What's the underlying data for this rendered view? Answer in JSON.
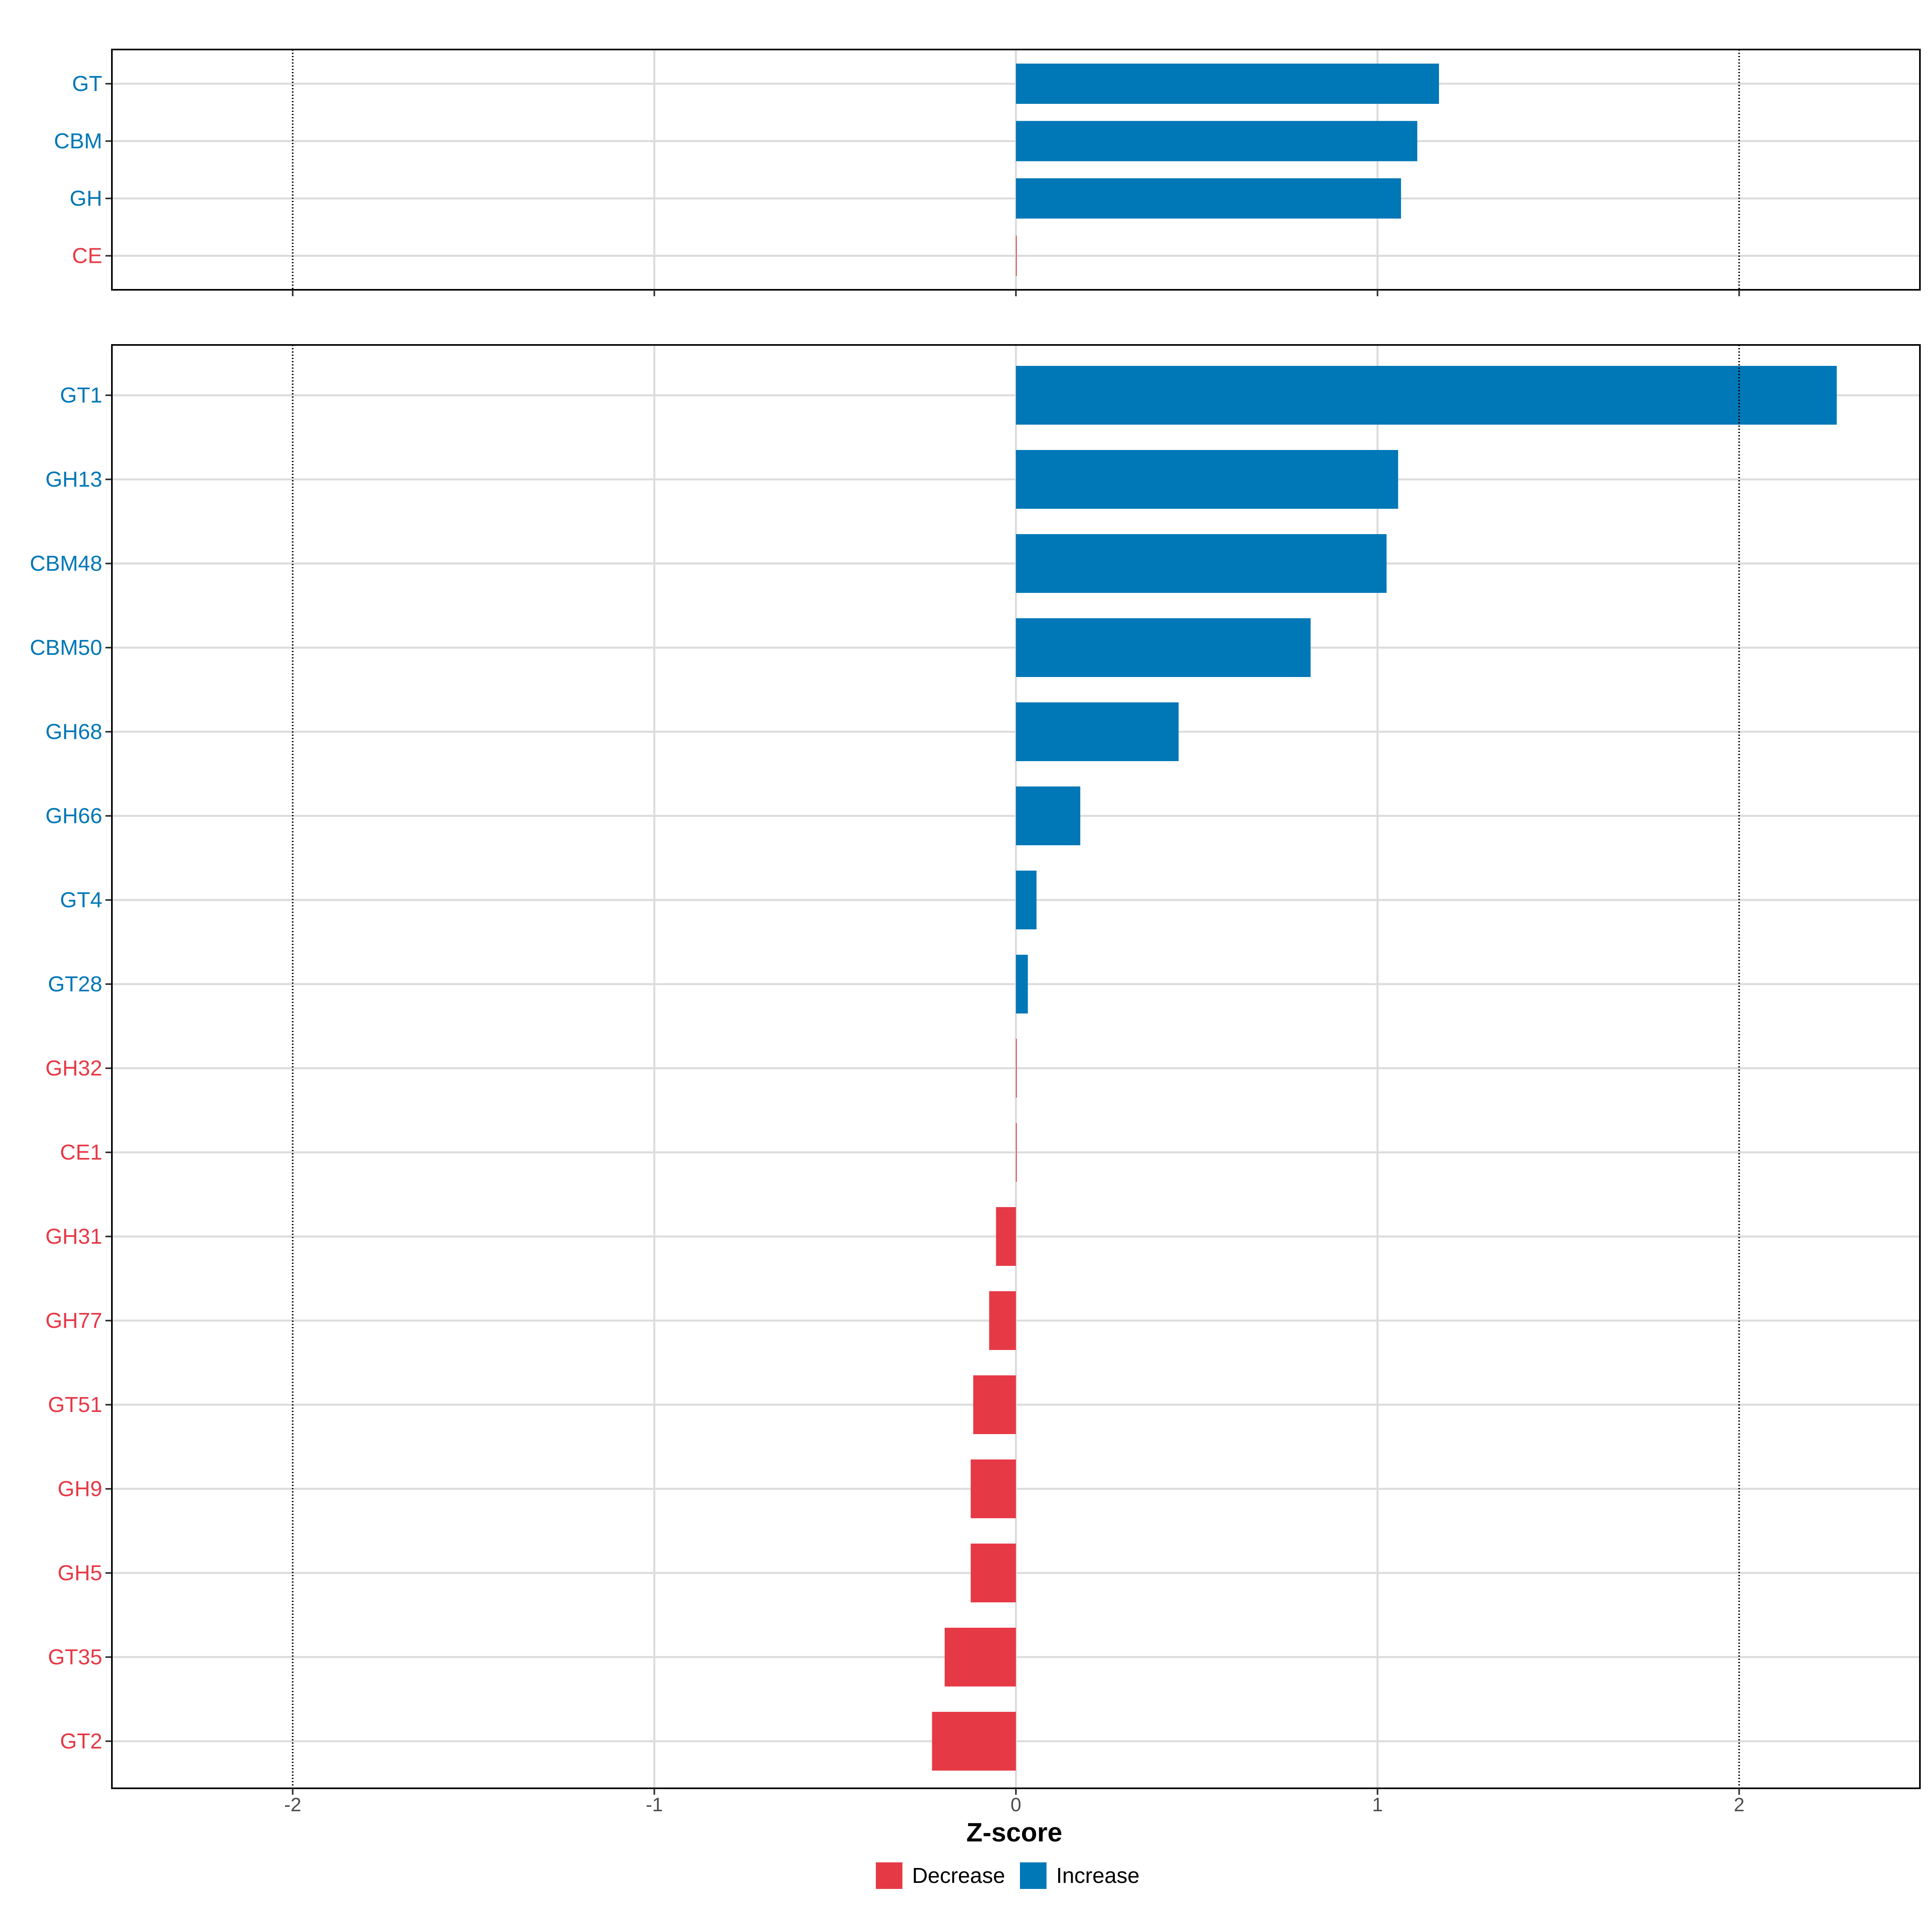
{
  "chart_data": [
    {
      "type": "bar",
      "orientation": "horizontal",
      "panel": "top",
      "categories": [
        "GT",
        "CBM",
        "GH",
        "CE"
      ],
      "values": [
        1.17,
        1.11,
        1.065,
        0.0
      ],
      "direction": [
        "Increase",
        "Increase",
        "Increase",
        "Decrease"
      ],
      "xlim": [
        -2.5,
        2.5
      ],
      "reference_lines": [
        -2,
        2
      ]
    },
    {
      "type": "bar",
      "orientation": "horizontal",
      "panel": "bottom",
      "categories": [
        "GT1",
        "GH13",
        "CBM48",
        "CBM50",
        "GH68",
        "GH66",
        "GT4",
        "GT28",
        "GH32",
        "CE1",
        "GH31",
        "GH77",
        "GT51",
        "GH9",
        "GH5",
        "GT35",
        "GT2"
      ],
      "values": [
        2.27,
        1.057,
        1.025,
        0.815,
        0.45,
        0.178,
        0.057,
        0.033,
        0.0,
        0.0,
        -0.055,
        -0.074,
        -0.118,
        -0.125,
        -0.125,
        -0.197,
        -0.232
      ],
      "direction": [
        "Increase",
        "Increase",
        "Increase",
        "Increase",
        "Increase",
        "Increase",
        "Increase",
        "Increase",
        "Decrease",
        "Decrease",
        "Decrease",
        "Decrease",
        "Decrease",
        "Decrease",
        "Decrease",
        "Decrease",
        "Decrease"
      ],
      "xlim": [
        -2.5,
        2.5
      ],
      "reference_lines": [
        -2,
        2
      ]
    }
  ],
  "x_axis": {
    "title": "Z-score",
    "ticks": [
      -2,
      -1,
      0,
      1,
      2
    ],
    "tick_labels": [
      "-2",
      "-1",
      "0",
      "1",
      "2"
    ]
  },
  "legend": {
    "position": "bottom",
    "items": [
      {
        "label": "Decrease",
        "color": "#E63946"
      },
      {
        "label": "Increase",
        "color": "#0077B6"
      }
    ]
  },
  "colors": {
    "Increase": "#0077B6",
    "Decrease": "#E63946",
    "grid": "#dcdcdc",
    "panel_border": "#000000"
  }
}
